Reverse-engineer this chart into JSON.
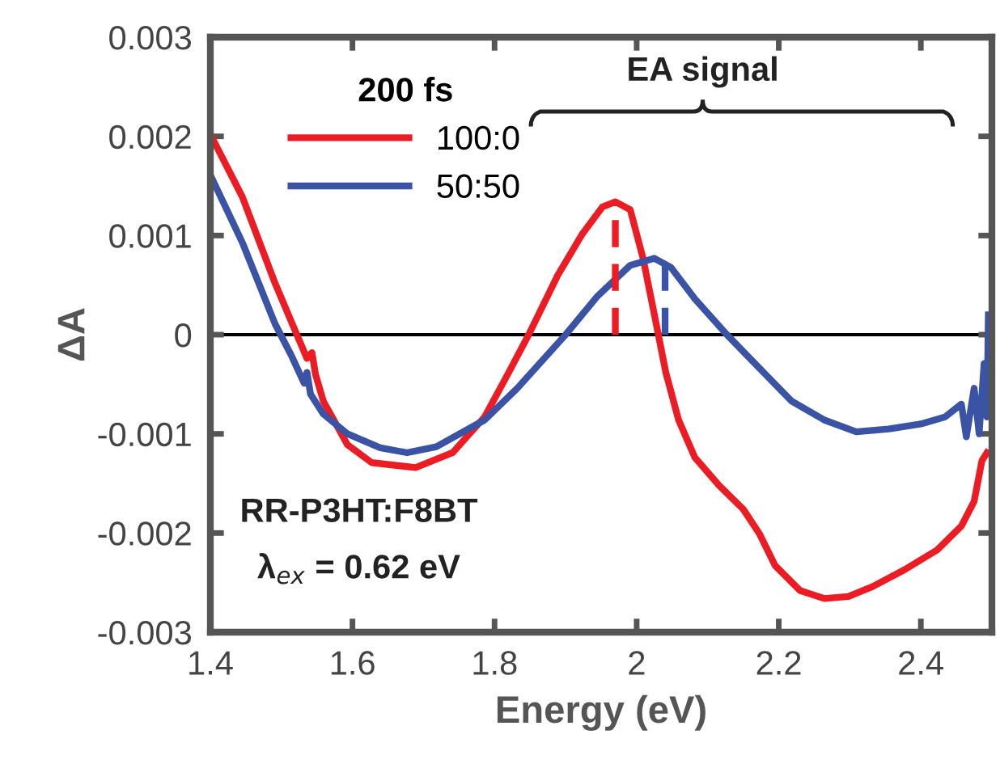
{
  "chart_data": {
    "type": "line",
    "xlabel": "Energy (eV)",
    "ylabel": "ΔA",
    "legend_title": "200 fs",
    "legend": "top left",
    "grid": false,
    "marker": "none",
    "line_style": "solid",
    "xlim": [
      1.4,
      2.5
    ],
    "xticks": [
      1.4,
      1.6,
      1.8,
      2,
      2.2,
      2.4
    ],
    "ylim": [
      -0.003,
      0.003
    ],
    "yticks": [
      {
        "value": -0.003,
        "label": "-0.003"
      },
      {
        "value": -0.002,
        "label": "-0.002"
      },
      {
        "value": -0.001,
        "label": "-0.001"
      },
      0,
      0.001,
      0.002,
      0.003
    ],
    "ref_lines": [
      {
        "axis": "y",
        "value": 0,
        "color": "#000000"
      }
    ],
    "annotations": [
      "EA signal",
      "RR-P3HT:F8BT",
      "λ$_{ex}$ = 0.62 eV"
    ],
    "series": [
      {
        "name": "100:0",
        "color": "#ec1c24",
        "x": [
          1.4,
          1.445,
          1.491,
          1.52,
          1.536,
          1.543,
          1.548,
          1.559,
          1.593,
          1.627,
          1.689,
          1.741,
          1.786,
          1.82,
          1.848,
          1.889,
          1.923,
          1.952,
          1.97,
          1.991,
          2.009,
          2.025,
          2.041,
          2.059,
          2.082,
          2.116,
          2.15,
          2.173,
          2.195,
          2.23,
          2.264,
          2.298,
          2.332,
          2.377,
          2.423,
          2.457,
          2.475,
          2.486,
          2.493
        ],
        "values": [
          0.00202,
          0.00139,
          0.00052,
          3e-05,
          -0.00024,
          -0.00018,
          -0.0004,
          -0.00067,
          -0.00111,
          -0.00129,
          -0.00134,
          -0.00119,
          -0.00083,
          -0.00038,
          0,
          0.0006,
          0.00101,
          0.00129,
          0.00134,
          0.00126,
          0.00077,
          0.0002,
          -0.00038,
          -0.00086,
          -0.00124,
          -0.00152,
          -0.00176,
          -0.00201,
          -0.00233,
          -0.00258,
          -0.00266,
          -0.00264,
          -0.00254,
          -0.00237,
          -0.00217,
          -0.00193,
          -0.00168,
          -0.00127,
          -0.00119
        ]
      },
      {
        "name": "50:50",
        "color": "#3a53a4",
        "x": [
          1.4,
          1.445,
          1.491,
          1.514,
          1.532,
          1.536,
          1.541,
          1.559,
          1.593,
          1.639,
          1.677,
          1.718,
          1.786,
          1.832,
          1.9,
          1.945,
          1.991,
          2.025,
          2.048,
          2.082,
          2.127,
          2.173,
          2.218,
          2.264,
          2.309,
          2.355,
          2.4,
          2.434,
          2.457,
          2.464,
          2.475,
          2.482,
          2.489,
          2.493,
          2.495
        ],
        "values": [
          0.00161,
          0.00093,
          0.00011,
          -0.00021,
          -0.00049,
          -0.00038,
          -0.0006,
          -0.0008,
          -0.001,
          -0.00114,
          -0.00119,
          -0.00113,
          -0.00086,
          -0.00054,
          0,
          0.00039,
          0.0007,
          0.00077,
          0.00068,
          0.00036,
          0,
          -0.00034,
          -0.00067,
          -0.00086,
          -0.00098,
          -0.00095,
          -0.0009,
          -0.00083,
          -0.0007,
          -0.00103,
          -0.00054,
          -0.001,
          -0.00029,
          -0.00083,
          0.0002
        ]
      },
      {
        "type": "line",
        "line_style": "dashed",
        "color": "#ec1c24",
        "x": [
          1.97,
          1.97
        ],
        "values": [
          0,
          0.00134
        ]
      },
      {
        "type": "line",
        "line_style": "dashed",
        "color": "#3a53a4",
        "x": [
          2.04,
          2.04
        ],
        "values": [
          0,
          0.00077
        ]
      }
    ]
  }
}
